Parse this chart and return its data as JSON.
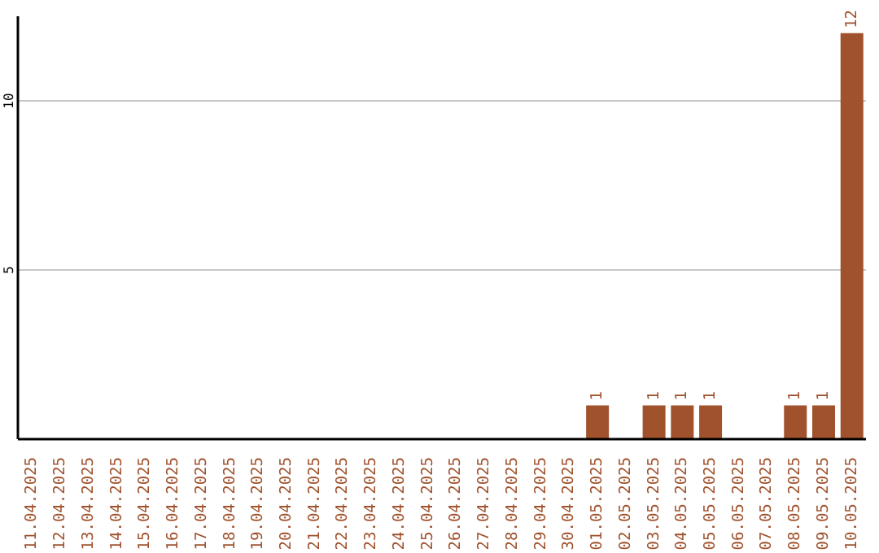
{
  "chart_data": {
    "type": "bar",
    "categories": [
      "11.04.2025",
      "12.04.2025",
      "13.04.2025",
      "14.04.2025",
      "15.04.2025",
      "16.04.2025",
      "17.04.2025",
      "18.04.2025",
      "19.04.2025",
      "20.04.2025",
      "21.04.2025",
      "22.04.2025",
      "23.04.2025",
      "24.04.2025",
      "25.04.2025",
      "26.04.2025",
      "27.04.2025",
      "28.04.2025",
      "29.04.2025",
      "30.04.2025",
      "01.05.2025",
      "02.05.2025",
      "03.05.2025",
      "04.05.2025",
      "05.05.2025",
      "06.05.2025",
      "07.05.2025",
      "08.05.2025",
      "09.05.2025",
      "10.05.2025"
    ],
    "values": [
      0,
      0,
      0,
      0,
      0,
      0,
      0,
      0,
      0,
      0,
      0,
      0,
      0,
      0,
      0,
      0,
      0,
      0,
      0,
      0,
      1,
      0,
      1,
      1,
      1,
      0,
      0,
      1,
      1,
      12
    ],
    "value_labels": [
      null,
      null,
      null,
      null,
      null,
      null,
      null,
      null,
      null,
      null,
      null,
      null,
      null,
      null,
      null,
      null,
      null,
      null,
      null,
      null,
      "1",
      null,
      "1",
      "1",
      "1",
      null,
      null,
      "1",
      "1",
      "12"
    ],
    "color": "#a0522d",
    "ylim": [
      0,
      12.5
    ],
    "yticks": [
      5,
      10
    ],
    "grid": "y"
  }
}
